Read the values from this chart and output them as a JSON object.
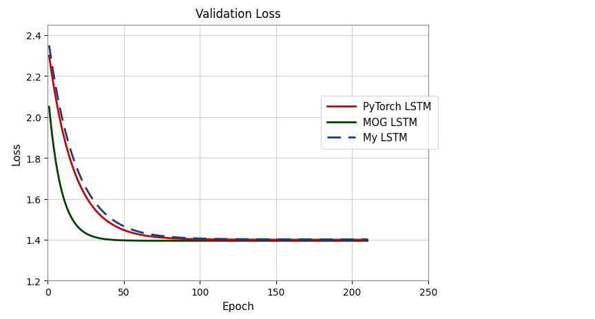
{
  "title": "Validation Loss",
  "xlabel": "Epoch",
  "ylabel": "Loss",
  "xlim": [
    0,
    250
  ],
  "ylim": [
    1.2,
    2.45
  ],
  "yticks": [
    1.2,
    1.4,
    1.6,
    1.8,
    2.0,
    2.2,
    2.4
  ],
  "xticks": [
    0,
    50,
    100,
    150,
    200,
    250
  ],
  "my_lstm_color": "#1a3a8a",
  "pytorch_lstm_color": "#cc0000",
  "mog_lstm_color": "#004400",
  "figsize": [
    8.64,
    4.64
  ],
  "dpi": 100,
  "legend_entries": [
    "My LSTM",
    "PyTorch LSTM",
    "MOG LSTM"
  ],
  "background_color": "#ffffff",
  "my_lstm_start": 2.35,
  "my_lstm_end": 1.402,
  "my_lstm_decay": 0.055,
  "pytorch_lstm_start": 2.3,
  "pytorch_lstm_end": 1.4,
  "pytorch_lstm_decay": 0.06,
  "mog_lstm_start": 2.05,
  "mog_lstm_end": 1.395,
  "mog_lstm_decay": 0.12
}
